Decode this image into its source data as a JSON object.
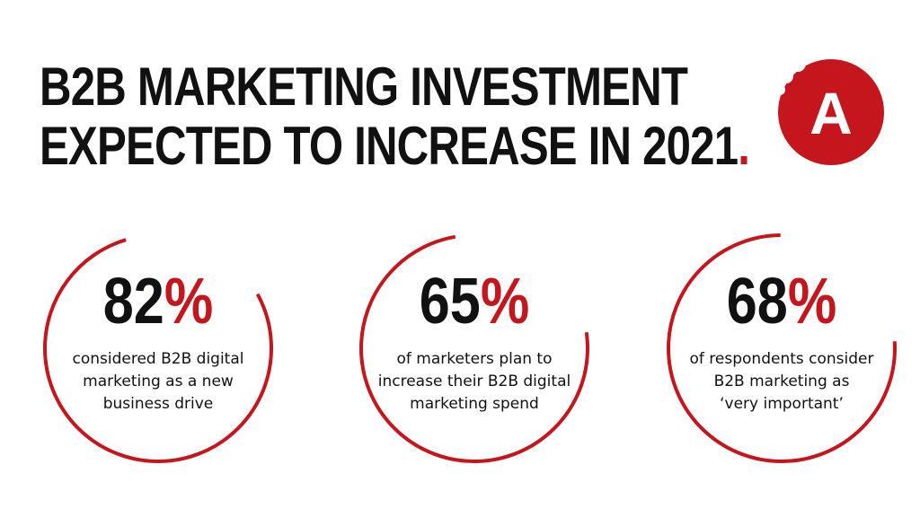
{
  "title": {
    "line1": "B2B MARKETING INVESTMENT",
    "line2": "EXPECTED TO INCREASE IN 2021",
    "dot": "."
  },
  "logo": {
    "letter": "A",
    "icon": "brand-logo-icon",
    "color": "#c4161c"
  },
  "colors": {
    "accent": "#c4161c",
    "text": "#111111",
    "background": "#ffffff"
  },
  "stats": [
    {
      "number": "82",
      "sign": "%",
      "line1": "considered B2B digital",
      "line2": "marketing as a new",
      "line3": "business drive"
    },
    {
      "number": "65",
      "sign": "%",
      "line1": "of marketers plan to",
      "line2": "increase their B2B digital",
      "line3": "marketing spend"
    },
    {
      "number": "68",
      "sign": "%",
      "line1": "of respondents consider",
      "line2": "B2B marketing as",
      "line3": "‘very important’"
    }
  ]
}
